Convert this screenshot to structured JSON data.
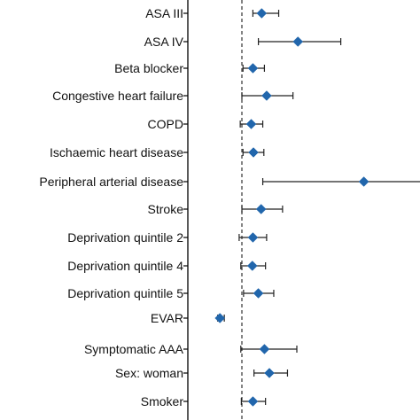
{
  "chart_data": {
    "type": "scatter",
    "subtype": "forest-plot",
    "title": "",
    "xlabel": "",
    "ylabel": "",
    "reference_line": {
      "value": 1,
      "style": "dashed"
    },
    "grid": false,
    "legend": "none",
    "marker": "diamond",
    "colors": {
      "marker": "#2166ac",
      "error_bar": "#222222",
      "axis": "#000000",
      "reference": "#333333"
    },
    "xlim": [
      0.5,
      4.5
    ],
    "categories": [
      "ASA III",
      "ASA IV",
      "Beta blocker",
      "Congestive heart failure",
      "COPD",
      "Ischaemic heart disease",
      "Peripheral arterial disease",
      "Stroke",
      "Deprivation quintile 2",
      "Deprivation quintile 4",
      "Deprivation quintile 5",
      "EVAR",
      "Symptomatic AAA",
      "Sex: woman",
      "Smoker"
    ],
    "estimates": [
      1.36,
      2.02,
      1.2,
      1.45,
      1.17,
      1.21,
      3.22,
      1.35,
      1.2,
      1.19,
      1.3,
      0.6,
      1.41,
      1.5,
      1.2
    ],
    "lower": [
      1.2,
      1.3,
      1.02,
      1.0,
      0.97,
      1.02,
      1.38,
      1.0,
      0.95,
      0.98,
      1.03,
      0.56,
      0.98,
      1.22,
      0.99
    ],
    "upper": [
      1.67,
      2.8,
      1.41,
      1.93,
      1.38,
      1.4,
      4.28,
      1.74,
      1.45,
      1.43,
      1.58,
      0.68,
      2.0,
      1.83,
      1.43
    ]
  }
}
